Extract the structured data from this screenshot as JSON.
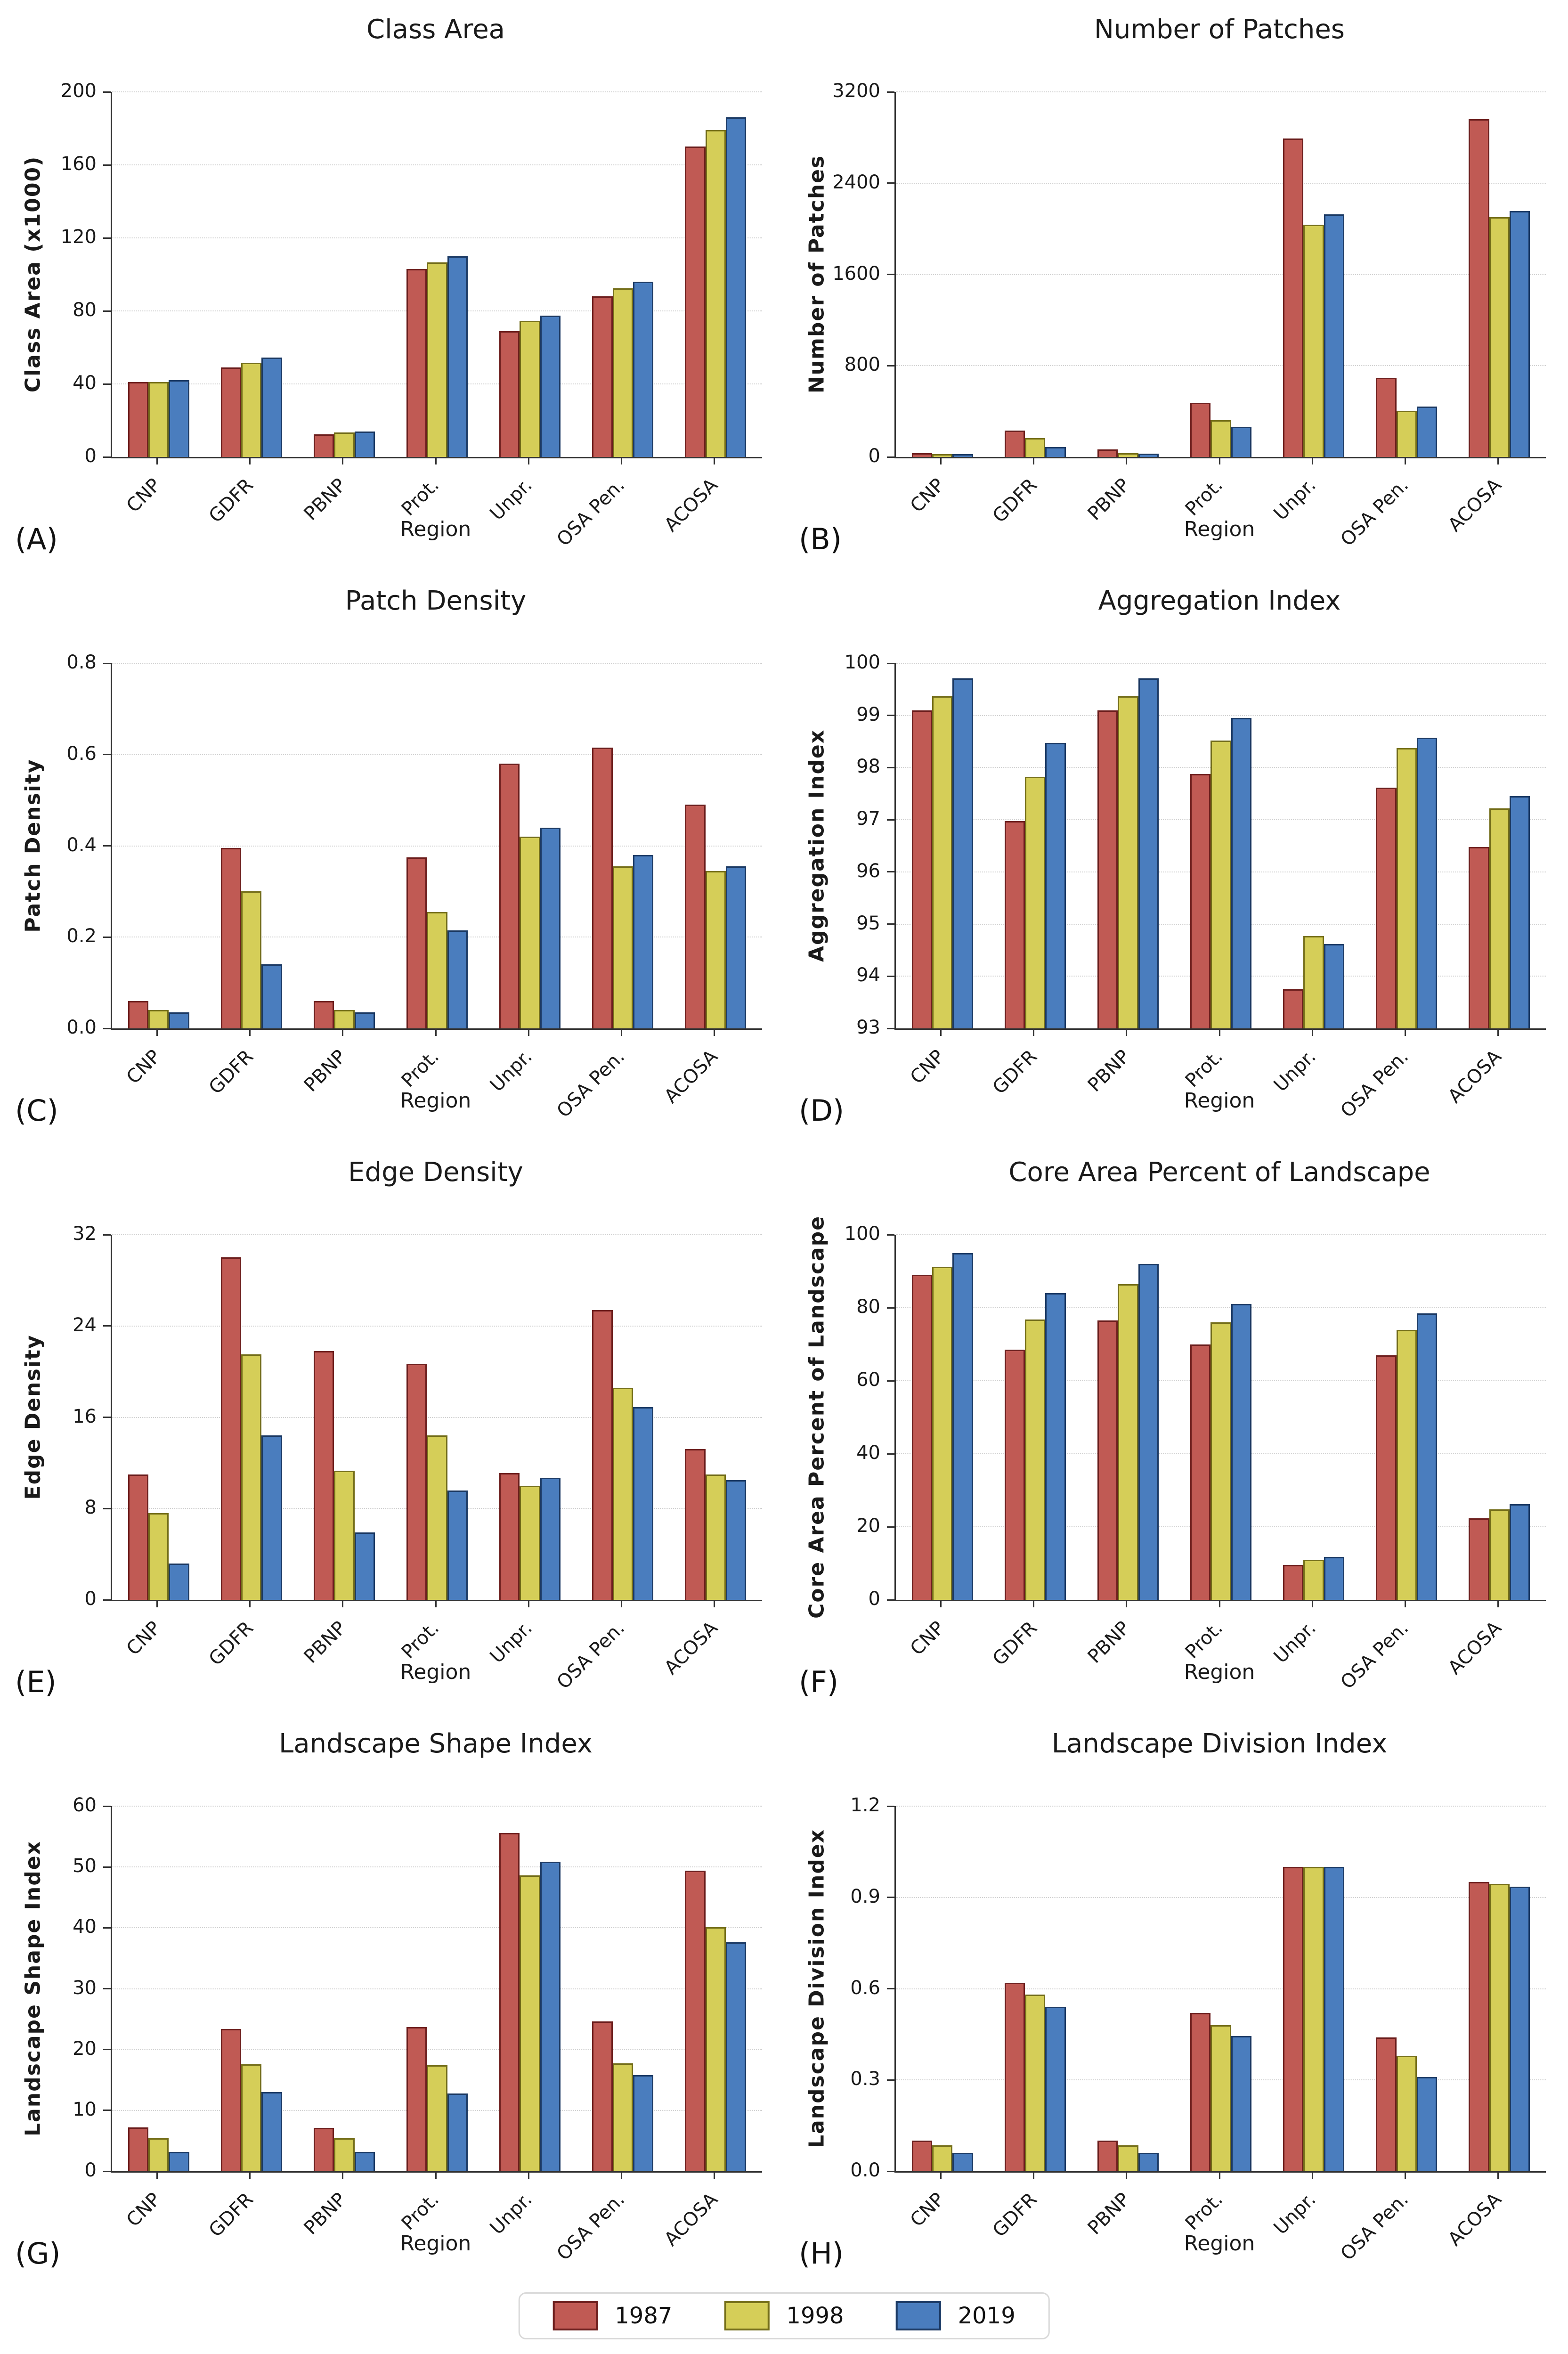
{
  "figure": {
    "xlabel": "Region",
    "series_names": [
      "1987",
      "1998",
      "2019"
    ],
    "categories": [
      "CNP",
      "GDFR",
      "PBNP",
      "Prot.",
      "Unpr.",
      "OSA Pen.",
      "ACOSA"
    ],
    "grid": "horizontal-dotted",
    "background": "#ffffff",
    "spine_color": "#333333"
  },
  "legend": {
    "position": "bottom-center",
    "items": [
      {
        "label": "1987",
        "fill": "#c05a54",
        "edge": "#6d1f1e"
      },
      {
        "label": "1998",
        "fill": "#d5ce58",
        "edge": "#746e1a"
      },
      {
        "label": "2019",
        "fill": "#4a7dbe",
        "edge": "#1c3a64"
      }
    ]
  },
  "chart_data": [
    {
      "type": "bar",
      "panel_label": "(A)",
      "title": "Class Area",
      "xlabel": "Region",
      "ylabel": "Class Area (x1000)",
      "ylim": [
        0,
        200
      ],
      "yticks": [
        "0",
        "40",
        "80",
        "120",
        "160",
        "200"
      ],
      "categories": [
        "CNP",
        "GDFR",
        "PBNP",
        "Prot.",
        "Unpr.",
        "OSA Pen.",
        "ACOSA"
      ],
      "series": [
        {
          "name": "1987",
          "values": [
            41,
            49,
            12.5,
            103,
            69,
            88,
            170
          ]
        },
        {
          "name": "1998",
          "values": [
            41,
            51.5,
            13.5,
            106.5,
            74.5,
            92.5,
            179
          ]
        },
        {
          "name": "2019",
          "values": [
            42,
            54.5,
            14,
            110,
            77.5,
            96,
            186
          ]
        }
      ]
    },
    {
      "type": "bar",
      "panel_label": "(B)",
      "title": "Number of Patches",
      "xlabel": "Region",
      "ylabel": "Number of Patches",
      "ylim": [
        0,
        3200
      ],
      "yticks": [
        "0",
        "800",
        "1600",
        "2400",
        "3200"
      ],
      "categories": [
        "CNP",
        "GDFR",
        "PBNP",
        "Prot.",
        "Unpr.",
        "OSA Pen.",
        "ACOSA"
      ],
      "series": [
        {
          "name": "1987",
          "values": [
            35,
            230,
            66,
            473,
            2790,
            695,
            2960
          ]
        },
        {
          "name": "1998",
          "values": [
            25,
            165,
            35,
            324,
            2035,
            404,
            2100
          ]
        },
        {
          "name": "2019",
          "values": [
            25,
            85,
            28,
            265,
            2128,
            440,
            2157
          ]
        }
      ]
    },
    {
      "type": "bar",
      "panel_label": "(C)",
      "title": "Patch Density",
      "xlabel": "Region",
      "ylabel": "Patch Density",
      "ylim": [
        0,
        0.8
      ],
      "yticks": [
        "0.0",
        "0.2",
        "0.4",
        "0.6",
        "0.8"
      ],
      "categories": [
        "CNP",
        "GDFR",
        "PBNP",
        "Prot.",
        "Unpr.",
        "OSA Pen.",
        "ACOSA"
      ],
      "series": [
        {
          "name": "1987",
          "values": [
            0.06,
            0.395,
            0.06,
            0.375,
            0.58,
            0.615,
            0.49
          ]
        },
        {
          "name": "1998",
          "values": [
            0.04,
            0.3,
            0.04,
            0.255,
            0.42,
            0.355,
            0.345
          ]
        },
        {
          "name": "2019",
          "values": [
            0.035,
            0.14,
            0.035,
            0.215,
            0.44,
            0.38,
            0.355
          ]
        }
      ]
    },
    {
      "type": "bar",
      "panel_label": "(D)",
      "title": "Aggregation Index",
      "xlabel": "Region",
      "ylabel": "Aggregation Index",
      "ylim": [
        93,
        100
      ],
      "yticks": [
        "93",
        "94",
        "95",
        "96",
        "97",
        "98",
        "99",
        "100"
      ],
      "categories": [
        "CNP",
        "GDFR",
        "PBNP",
        "Prot.",
        "Unpr.",
        "OSA Pen.",
        "ACOSA"
      ],
      "series": [
        {
          "name": "1987",
          "values": [
            99.1,
            96.97,
            99.1,
            97.88,
            93.75,
            97.62,
            96.48
          ]
        },
        {
          "name": "1998",
          "values": [
            99.37,
            97.82,
            99.37,
            98.52,
            94.77,
            98.37,
            97.22
          ]
        },
        {
          "name": "2019",
          "values": [
            99.71,
            98.47,
            99.71,
            98.95,
            94.62,
            98.57,
            97.45
          ]
        }
      ]
    },
    {
      "type": "bar",
      "panel_label": "(E)",
      "title": "Edge Density",
      "xlabel": "Region",
      "ylabel": "Edge Density",
      "ylim": [
        0,
        32
      ],
      "yticks": [
        "0",
        "8",
        "16",
        "24",
        "32"
      ],
      "categories": [
        "CNP",
        "GDFR",
        "PBNP",
        "Prot.",
        "Unpr.",
        "OSA Pen.",
        "ACOSA"
      ],
      "series": [
        {
          "name": "1987",
          "values": [
            11,
            30,
            21.8,
            20.7,
            11.1,
            25.4,
            13.2
          ]
        },
        {
          "name": "1998",
          "values": [
            7.6,
            21.5,
            11.3,
            14.4,
            10,
            18.6,
            11
          ]
        },
        {
          "name": "2019",
          "values": [
            3.2,
            14.4,
            5.9,
            9.6,
            10.7,
            16.9,
            10.5
          ]
        }
      ]
    },
    {
      "type": "bar",
      "panel_label": "(F)",
      "title": "Core Area Percent of Landscape",
      "xlabel": "Region",
      "ylabel": "Core Area Percent of Landscape",
      "ylim": [
        0,
        100
      ],
      "yticks": [
        "0",
        "20",
        "40",
        "60",
        "80",
        "100"
      ],
      "categories": [
        "CNP",
        "GDFR",
        "PBNP",
        "Prot.",
        "Unpr.",
        "OSA Pen.",
        "ACOSA"
      ],
      "series": [
        {
          "name": "1987",
          "values": [
            89,
            68.5,
            76.5,
            70,
            9.5,
            67,
            22.3
          ]
        },
        {
          "name": "1998",
          "values": [
            91.2,
            76.8,
            86.5,
            76,
            11,
            74,
            24.8
          ]
        },
        {
          "name": "2019",
          "values": [
            95,
            84,
            92,
            81,
            11.8,
            78.4,
            26.2
          ]
        }
      ]
    },
    {
      "type": "bar",
      "panel_label": "(G)",
      "title": "Landscape Shape Index",
      "xlabel": "Region",
      "ylabel": "Landscape Shape Index",
      "ylim": [
        0,
        60
      ],
      "yticks": [
        "0",
        "10",
        "20",
        "30",
        "40",
        "50",
        "60"
      ],
      "categories": [
        "CNP",
        "GDFR",
        "PBNP",
        "Prot.",
        "Unpr.",
        "OSA Pen.",
        "ACOSA"
      ],
      "series": [
        {
          "name": "1987",
          "values": [
            7.2,
            23.4,
            7.1,
            23.7,
            55.6,
            24.6,
            49.4
          ]
        },
        {
          "name": "1998",
          "values": [
            5.4,
            17.6,
            5.4,
            17.4,
            48.6,
            17.7,
            40.1
          ]
        },
        {
          "name": "2019",
          "values": [
            3.2,
            13,
            3.2,
            12.8,
            50.9,
            15.8,
            37.6
          ]
        }
      ]
    },
    {
      "type": "bar",
      "panel_label": "(H)",
      "title": "Landscape Division Index",
      "xlabel": "Region",
      "ylabel": "Landscape Division Index",
      "ylim": [
        0,
        1.2
      ],
      "yticks": [
        "0.0",
        "0.3",
        "0.6",
        "0.9",
        "1.2"
      ],
      "categories": [
        "CNP",
        "GDFR",
        "PBNP",
        "Prot.",
        "Unpr.",
        "OSA Pen.",
        "ACOSA"
      ],
      "series": [
        {
          "name": "1987",
          "values": [
            0.1,
            0.62,
            0.1,
            0.52,
            1.0,
            0.44,
            0.95
          ]
        },
        {
          "name": "1998",
          "values": [
            0.085,
            0.58,
            0.085,
            0.48,
            1.0,
            0.38,
            0.945
          ]
        },
        {
          "name": "2019",
          "values": [
            0.06,
            0.54,
            0.06,
            0.445,
            1.0,
            0.31,
            0.935
          ]
        }
      ]
    }
  ]
}
